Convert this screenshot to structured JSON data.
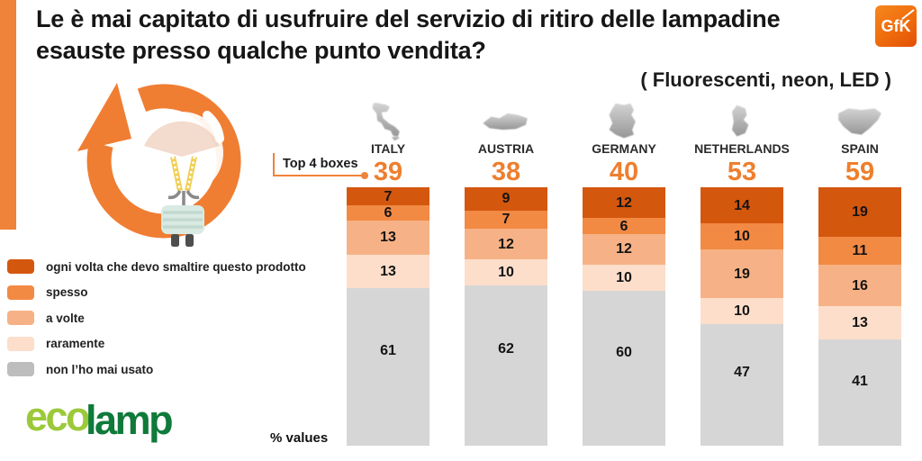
{
  "header": {
    "title": "Le è mai capitato di usufruire del servizio di ritiro delle lampadine esauste presso qualche punto vendita?",
    "subtitle": "( Fluorescenti, neon, LED )",
    "logo": "GfK"
  },
  "chart": {
    "top4_label": "Top 4 boxes",
    "percent_label": "% values"
  },
  "chart_data": {
    "type": "bar",
    "stacked": true,
    "unit": "%",
    "ylim": [
      0,
      100
    ],
    "legend_position": "left",
    "categories": [
      "ogni volta che devo smaltire questo prodotto",
      "spesso",
      "a volte",
      "raramente",
      "non l’ho mai usato"
    ],
    "colors": [
      "#d4570e",
      "#f28a44",
      "#f6b286",
      "#fcdecb",
      "#d6d6d6"
    ],
    "series": [
      {
        "country": "ITALY",
        "top4": "39",
        "values": [
          7,
          6,
          13,
          13,
          61
        ]
      },
      {
        "country": "AUSTRIA",
        "top4": "38",
        "values": [
          9,
          7,
          12,
          10,
          62
        ]
      },
      {
        "country": "GERMANY",
        "top4": "40",
        "values": [
          12,
          6,
          12,
          10,
          60
        ]
      },
      {
        "country": "NETHERLANDS",
        "top4": "53",
        "values": [
          14,
          10,
          19,
          10,
          47
        ]
      },
      {
        "country": "SPAIN",
        "top4": "59",
        "values": [
          19,
          11,
          16,
          13,
          41
        ]
      }
    ]
  },
  "legend": {
    "items": [
      {
        "label": "ogni volta che devo smaltire questo prodotto",
        "color": "#d4570e"
      },
      {
        "label": "spesso",
        "color": "#f28a44"
      },
      {
        "label": "a volte",
        "color": "#f6b286"
      },
      {
        "label": "raramente",
        "color": "#fcdecb"
      },
      {
        "label": "non l’ho mai usato",
        "color": "#bdbdbd"
      }
    ]
  },
  "footer": {
    "logo_eco": "eco",
    "logo_lamp": "lamp"
  },
  "colors": {
    "accent": "#f0833a",
    "top4_number": "#ee7f2e",
    "gfk_orange": "#ef6c0c"
  }
}
